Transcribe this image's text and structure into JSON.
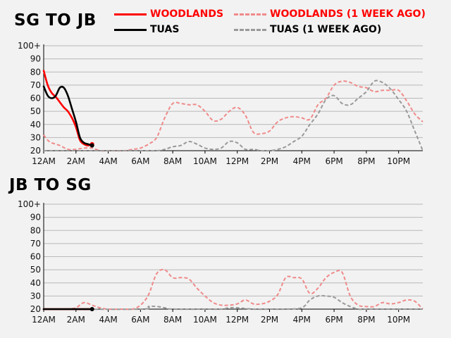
{
  "colors": {
    "woodlands": "#ff0000",
    "tuas": "#000000",
    "woodlands_prev": "#f08a8a",
    "tuas_prev": "#999999",
    "grid": "#b8b8b8",
    "background": "#f2f2f2"
  },
  "legend": {
    "woodlands": "WOODLANDS",
    "tuas": "TUAS",
    "woodlands_prev": "WOODLANDS (1 WEEK AGO)",
    "tuas_prev": "TUAS (1 WEEK AGO)"
  },
  "chart_data": [
    {
      "type": "line",
      "title": "SG TO JB",
      "xlabel": "",
      "ylabel": "",
      "x_unit": "hour of day",
      "xlim": [
        0,
        23.5
      ],
      "ylim": [
        20,
        100
      ],
      "y_ticks": [
        "20",
        "30",
        "40",
        "50",
        "60",
        "70",
        "80",
        "90",
        "100+"
      ],
      "x_ticks": [
        {
          "x": 0,
          "label": "12AM"
        },
        {
          "x": 2,
          "label": "2AM"
        },
        {
          "x": 4,
          "label": "4AM"
        },
        {
          "x": 6,
          "label": "6AM"
        },
        {
          "x": 8,
          "label": "8AM"
        },
        {
          "x": 10,
          "label": "10AM"
        },
        {
          "x": 12,
          "label": "12PM"
        },
        {
          "x": 14,
          "label": "2PM"
        },
        {
          "x": 16,
          "label": "4PM"
        },
        {
          "x": 18,
          "label": "6PM"
        },
        {
          "x": 20,
          "label": "8PM"
        },
        {
          "x": 22,
          "label": "10PM"
        }
      ],
      "grid": true,
      "series": [
        {
          "name": "WOODLANDS (1 WEEK AGO)",
          "key": "woodlands_prev",
          "dashed": true,
          "x": [
            0,
            0.25,
            0.5,
            1,
            1.5,
            2,
            2.5,
            3,
            3.5,
            4,
            5,
            5.5,
            6,
            6.5,
            7,
            7.5,
            8,
            8.5,
            9,
            9.5,
            10,
            10.5,
            11,
            11.5,
            12,
            12.5,
            13,
            13.5,
            14,
            14.5,
            15,
            15.5,
            16,
            16.5,
            17,
            17.5,
            18,
            18.5,
            19,
            19.5,
            20,
            20.5,
            21,
            21.5,
            22,
            22.5,
            23,
            23.5
          ],
          "y": [
            32,
            28,
            26,
            24,
            21,
            21,
            22,
            22,
            20,
            20,
            20,
            21,
            22,
            25,
            30,
            45,
            56,
            56,
            55,
            55,
            50,
            43,
            44,
            50,
            53,
            47,
            34,
            33,
            35,
            42,
            45,
            46,
            45,
            44,
            55,
            60,
            70,
            73,
            72,
            69,
            68,
            65,
            66,
            66,
            66,
            58,
            48,
            42
          ]
        },
        {
          "name": "TUAS (1 WEEK AGO)",
          "key": "tuas_prev",
          "dashed": true,
          "x": [
            0,
            1,
            2,
            3,
            4,
            5,
            6,
            7,
            7.5,
            8,
            8.5,
            9,
            9.5,
            10,
            10.5,
            11,
            11.5,
            12,
            12.5,
            13,
            13.5,
            14,
            14.5,
            15,
            15.5,
            16,
            16.5,
            17,
            17.5,
            18,
            18.5,
            19,
            19.5,
            20,
            20.5,
            21,
            21.5,
            22,
            22.5,
            23,
            23.5
          ],
          "y": [
            20,
            20,
            20,
            20,
            20,
            20,
            20,
            20,
            21,
            23,
            24,
            27,
            25,
            22,
            21,
            22,
            27,
            26,
            21,
            21,
            20,
            20,
            21,
            23,
            27,
            31,
            40,
            48,
            59,
            62,
            56,
            55,
            60,
            65,
            73,
            72,
            67,
            59,
            50,
            35,
            20
          ]
        },
        {
          "name": "WOODLANDS",
          "key": "woodlands",
          "dashed": false,
          "end_marker": true,
          "x": [
            0,
            0.25,
            0.5,
            0.75,
            1,
            1.25,
            1.5,
            1.75,
            2,
            2.25,
            2.5,
            2.75,
            3
          ],
          "y": [
            81,
            70,
            64,
            61,
            57,
            53,
            50,
            45,
            38,
            28,
            25,
            24,
            25
          ]
        },
        {
          "name": "TUAS",
          "key": "tuas",
          "dashed": false,
          "end_marker": true,
          "x": [
            0,
            0.25,
            0.5,
            0.75,
            1,
            1.25,
            1.5,
            1.75,
            2,
            2.25,
            2.5,
            2.75,
            3
          ],
          "y": [
            69,
            62,
            60,
            62,
            68,
            68,
            62,
            52,
            42,
            30,
            26,
            25,
            24
          ]
        }
      ]
    },
    {
      "type": "line",
      "title": "JB TO SG",
      "xlabel": "",
      "ylabel": "",
      "x_unit": "hour of day",
      "xlim": [
        0,
        23.5
      ],
      "ylim": [
        20,
        100
      ],
      "y_ticks": [
        "20",
        "30",
        "40",
        "50",
        "60",
        "70",
        "80",
        "90",
        "100+"
      ],
      "x_ticks": [
        {
          "x": 0,
          "label": "12AM"
        },
        {
          "x": 2,
          "label": "2AM"
        },
        {
          "x": 4,
          "label": "4AM"
        },
        {
          "x": 6,
          "label": "6AM"
        },
        {
          "x": 8,
          "label": "8AM"
        },
        {
          "x": 10,
          "label": "10AM"
        },
        {
          "x": 12,
          "label": "12PM"
        },
        {
          "x": 14,
          "label": "2PM"
        },
        {
          "x": 16,
          "label": "4PM"
        },
        {
          "x": 18,
          "label": "6PM"
        },
        {
          "x": 20,
          "label": "8PM"
        },
        {
          "x": 22,
          "label": "10PM"
        }
      ],
      "grid": true,
      "series": [
        {
          "name": "WOODLANDS (1 WEEK AGO)",
          "key": "woodlands_prev",
          "dashed": true,
          "x": [
            0,
            1,
            1.5,
            2,
            2.5,
            3,
            3.5,
            4,
            5,
            5.5,
            6,
            6.5,
            7,
            7.5,
            8,
            8.5,
            9,
            9.5,
            10,
            10.5,
            11,
            11.5,
            12,
            12.5,
            13,
            13.5,
            14,
            14.5,
            15,
            15.5,
            16,
            16.5,
            17,
            17.5,
            18,
            18.5,
            19,
            19.5,
            20,
            20.5,
            21,
            21.5,
            22,
            22.5,
            23,
            23.5
          ],
          "y": [
            20,
            20,
            20,
            21,
            25,
            23,
            21,
            20,
            20,
            20,
            23,
            31,
            47,
            50,
            44,
            44,
            43,
            36,
            30,
            25,
            23,
            23,
            24,
            27,
            24,
            24,
            26,
            31,
            44,
            44,
            43,
            32,
            36,
            44,
            48,
            48,
            30,
            23,
            22,
            22,
            25,
            24,
            25,
            27,
            26,
            20
          ]
        },
        {
          "name": "TUAS (1 WEEK AGO)",
          "key": "tuas_prev",
          "dashed": true,
          "x": [
            0,
            6,
            6.5,
            7,
            7.5,
            8,
            10,
            11,
            11.5,
            12,
            13,
            14,
            15,
            16,
            16.5,
            17,
            17.5,
            18,
            18.5,
            19,
            19.5,
            20,
            21,
            22,
            23,
            23.5
          ],
          "y": [
            20,
            20,
            22,
            22,
            21,
            20,
            20,
            20,
            21,
            21,
            20,
            20,
            20,
            21,
            27,
            30,
            30,
            29,
            25,
            22,
            20,
            20,
            20,
            20,
            20,
            20
          ]
        },
        {
          "name": "WOODLANDS",
          "key": "woodlands",
          "dashed": false,
          "end_marker": false,
          "x": [
            0,
            1,
            2,
            3
          ],
          "y": [
            20,
            20,
            20,
            20
          ]
        },
        {
          "name": "TUAS",
          "key": "tuas",
          "dashed": false,
          "end_marker": true,
          "x": [
            0,
            1,
            2,
            3
          ],
          "y": [
            20,
            20,
            20,
            20
          ]
        }
      ]
    }
  ]
}
